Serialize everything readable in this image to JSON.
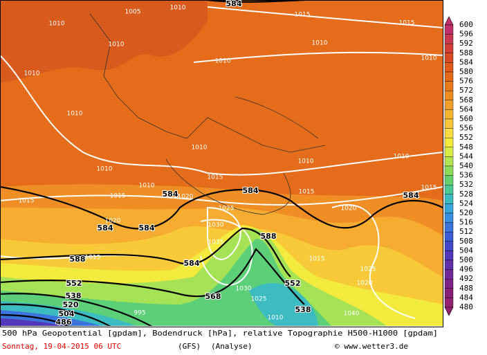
{
  "map": {
    "labels": [
      "584",
      "1005",
      "1010",
      "1010",
      "1015",
      "1015",
      "1010",
      "1010",
      "1010",
      "1010",
      "1010",
      "1010",
      "1010",
      "1010",
      "1010",
      "1010",
      "1010",
      "584",
      "1020",
      "1015",
      "1015",
      "584",
      "1015",
      "584",
      "1015",
      "1015",
      "1025",
      "1020",
      "584",
      "584",
      "1020",
      "1030",
      "588",
      "1035",
      "588",
      "1015",
      "584",
      "1015",
      "1025",
      "552",
      "1020",
      "568",
      "552",
      "1030",
      "538",
      "520",
      "1025",
      "538",
      "504",
      "1040",
      "486",
      "995",
      "1010"
    ],
    "colorbar": {
      "labels": [
        600,
        596,
        592,
        588,
        584,
        580,
        576,
        572,
        568,
        564,
        560,
        556,
        552,
        548,
        544,
        540,
        536,
        532,
        528,
        524,
        520,
        516,
        512,
        508,
        504,
        500,
        496,
        492,
        488,
        484,
        480
      ],
      "colors": [
        "#c0306a",
        "#c83850",
        "#d04038",
        "#d84a22",
        "#e05a1c",
        "#e4681a",
        "#e8781c",
        "#ec8c22",
        "#f0a02a",
        "#f4b432",
        "#f8c83a",
        "#fadc40",
        "#f2ea3c",
        "#d8ec46",
        "#b4e452",
        "#8cdc5a",
        "#64d06e",
        "#4cc896",
        "#3cbcc0",
        "#38a8dc",
        "#3890e0",
        "#3a74dc",
        "#3c5cd4",
        "#4248c8",
        "#5038b8",
        "#6030a8",
        "#702898",
        "#7c2488",
        "#882078",
        "#942070"
      ]
    },
    "footer": {
      "line1": "500 hPa Geopotential [gpdam], Bodendruck [hPa], relative Topographie H500-H1000 [gpdam]",
      "date": "Sonntag, 19-04-2015  06 UTC",
      "model": "(GFS)",
      "run": "(Analyse)",
      "site": "© www.wetter3.de"
    }
  }
}
